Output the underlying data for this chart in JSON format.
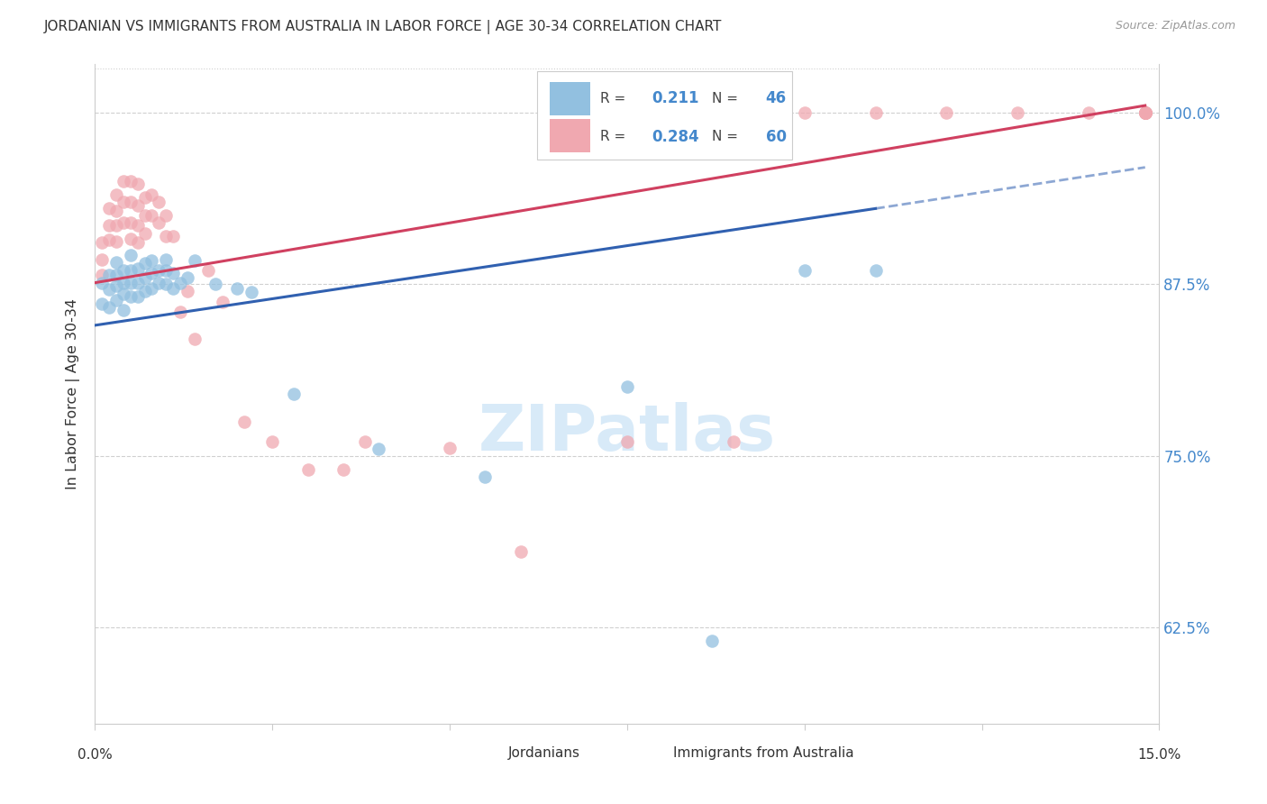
{
  "title": "JORDANIAN VS IMMIGRANTS FROM AUSTRALIA IN LABOR FORCE | AGE 30-34 CORRELATION CHART",
  "source": "Source: ZipAtlas.com",
  "ylabel": "In Labor Force | Age 30-34",
  "legend_label1": "Jordanians",
  "legend_label2": "Immigrants from Australia",
  "R1": 0.211,
  "N1": 46,
  "R2": 0.284,
  "N2": 60,
  "color1": "#92c0e0",
  "color2": "#f0a8b0",
  "line_color1": "#3060b0",
  "line_color2": "#d04060",
  "bg_color": "#ffffff",
  "grid_color": "#d0d0d0",
  "right_axis_color": "#4488cc",
  "xlim": [
    0.0,
    0.15
  ],
  "ylim": [
    0.555,
    1.035
  ],
  "yticks": [
    0.625,
    0.75,
    0.875,
    1.0
  ],
  "ytick_labels": [
    "62.5%",
    "75.0%",
    "87.5%",
    "100.0%"
  ],
  "blue_points_x": [
    0.001,
    0.001,
    0.002,
    0.002,
    0.002,
    0.003,
    0.003,
    0.003,
    0.003,
    0.004,
    0.004,
    0.004,
    0.004,
    0.005,
    0.005,
    0.005,
    0.005,
    0.006,
    0.006,
    0.006,
    0.007,
    0.007,
    0.007,
    0.008,
    0.008,
    0.008,
    0.009,
    0.009,
    0.01,
    0.01,
    0.01,
    0.011,
    0.011,
    0.012,
    0.013,
    0.014,
    0.017,
    0.02,
    0.022,
    0.028,
    0.04,
    0.055,
    0.075,
    0.087,
    0.1,
    0.11
  ],
  "blue_points_y": [
    0.876,
    0.861,
    0.882,
    0.871,
    0.858,
    0.891,
    0.882,
    0.874,
    0.863,
    0.885,
    0.876,
    0.868,
    0.856,
    0.896,
    0.885,
    0.876,
    0.866,
    0.886,
    0.876,
    0.866,
    0.89,
    0.88,
    0.87,
    0.892,
    0.883,
    0.872,
    0.885,
    0.876,
    0.893,
    0.885,
    0.875,
    0.883,
    0.872,
    0.876,
    0.88,
    0.892,
    0.875,
    0.872,
    0.869,
    0.795,
    0.755,
    0.735,
    0.8,
    0.615,
    0.885,
    0.885
  ],
  "pink_points_x": [
    0.001,
    0.001,
    0.001,
    0.002,
    0.002,
    0.002,
    0.003,
    0.003,
    0.003,
    0.003,
    0.004,
    0.004,
    0.004,
    0.005,
    0.005,
    0.005,
    0.005,
    0.006,
    0.006,
    0.006,
    0.006,
    0.007,
    0.007,
    0.007,
    0.008,
    0.008,
    0.009,
    0.009,
    0.01,
    0.01,
    0.011,
    0.012,
    0.013,
    0.014,
    0.016,
    0.018,
    0.021,
    0.025,
    0.03,
    0.035,
    0.038,
    0.05,
    0.06,
    0.075,
    0.09,
    0.1,
    0.11,
    0.12,
    0.13,
    0.14,
    0.148,
    0.148,
    0.148,
    0.148,
    0.148,
    0.148,
    0.148,
    0.148,
    0.148,
    0.148
  ],
  "pink_points_y": [
    0.905,
    0.893,
    0.882,
    0.93,
    0.918,
    0.907,
    0.94,
    0.928,
    0.918,
    0.906,
    0.95,
    0.935,
    0.92,
    0.95,
    0.935,
    0.92,
    0.908,
    0.948,
    0.932,
    0.918,
    0.905,
    0.938,
    0.925,
    0.912,
    0.94,
    0.925,
    0.935,
    0.92,
    0.925,
    0.91,
    0.91,
    0.855,
    0.87,
    0.835,
    0.885,
    0.862,
    0.775,
    0.76,
    0.74,
    0.74,
    0.76,
    0.756,
    0.68,
    0.76,
    0.76,
    1.0,
    1.0,
    1.0,
    1.0,
    1.0,
    1.0,
    1.0,
    1.0,
    1.0,
    1.0,
    1.0,
    1.0,
    1.0,
    1.0,
    1.0
  ],
  "trend_blue_x0": 0.0,
  "trend_blue_x1": 0.11,
  "trend_blue_y0": 0.845,
  "trend_blue_y1": 0.93,
  "trend_blue_dash_x0": 0.11,
  "trend_blue_dash_x1": 0.148,
  "trend_blue_dash_y0": 0.93,
  "trend_blue_dash_y1": 0.96,
  "trend_pink_x0": 0.0,
  "trend_pink_x1": 0.148,
  "trend_pink_y0": 0.876,
  "trend_pink_y1": 1.005
}
